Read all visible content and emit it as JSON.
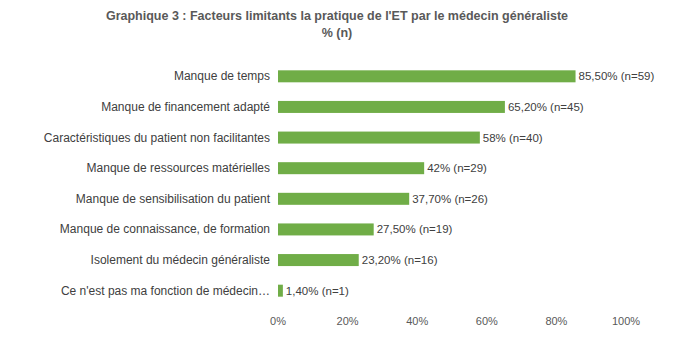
{
  "chart_data": {
    "type": "bar",
    "orientation": "horizontal",
    "title": "Graphique 3 : Facteurs limitants la pratique de l'ET par le médecin généraliste",
    "subtitle": "% (n)",
    "categories": [
      "Manque de temps",
      "Manque de financement adapté",
      "Caractéristiques du patient non facilitantes",
      "Manque de ressources matérielles",
      "Manque de sensibilisation du patient",
      "Manque de connaissance, de formation",
      "Isolement du médecin généraliste",
      "Ce n'est pas ma fonction de médecin…"
    ],
    "values": [
      85.5,
      65.2,
      58,
      42,
      37.7,
      27.5,
      23.2,
      1.4
    ],
    "value_labels": [
      "85,50% (n=59)",
      "65,20% (n=45)",
      "58% (n=40)",
      "42% (n=29)",
      "37,70% (n=26)",
      "27,50% (n=19)",
      "23,20% (n=16)",
      "1,40% (n=1)"
    ],
    "data_labels": true,
    "color": "#70ad47",
    "xlim": [
      0,
      100
    ],
    "xticks": [
      {
        "value": 0,
        "label": "0%"
      },
      {
        "value": 20,
        "label": "20%"
      },
      {
        "value": 40,
        "label": "40%"
      },
      {
        "value": 60,
        "label": "60%"
      },
      {
        "value": 80,
        "label": "80%"
      },
      {
        "value": 100,
        "label": "100%"
      }
    ],
    "grid": false
  }
}
